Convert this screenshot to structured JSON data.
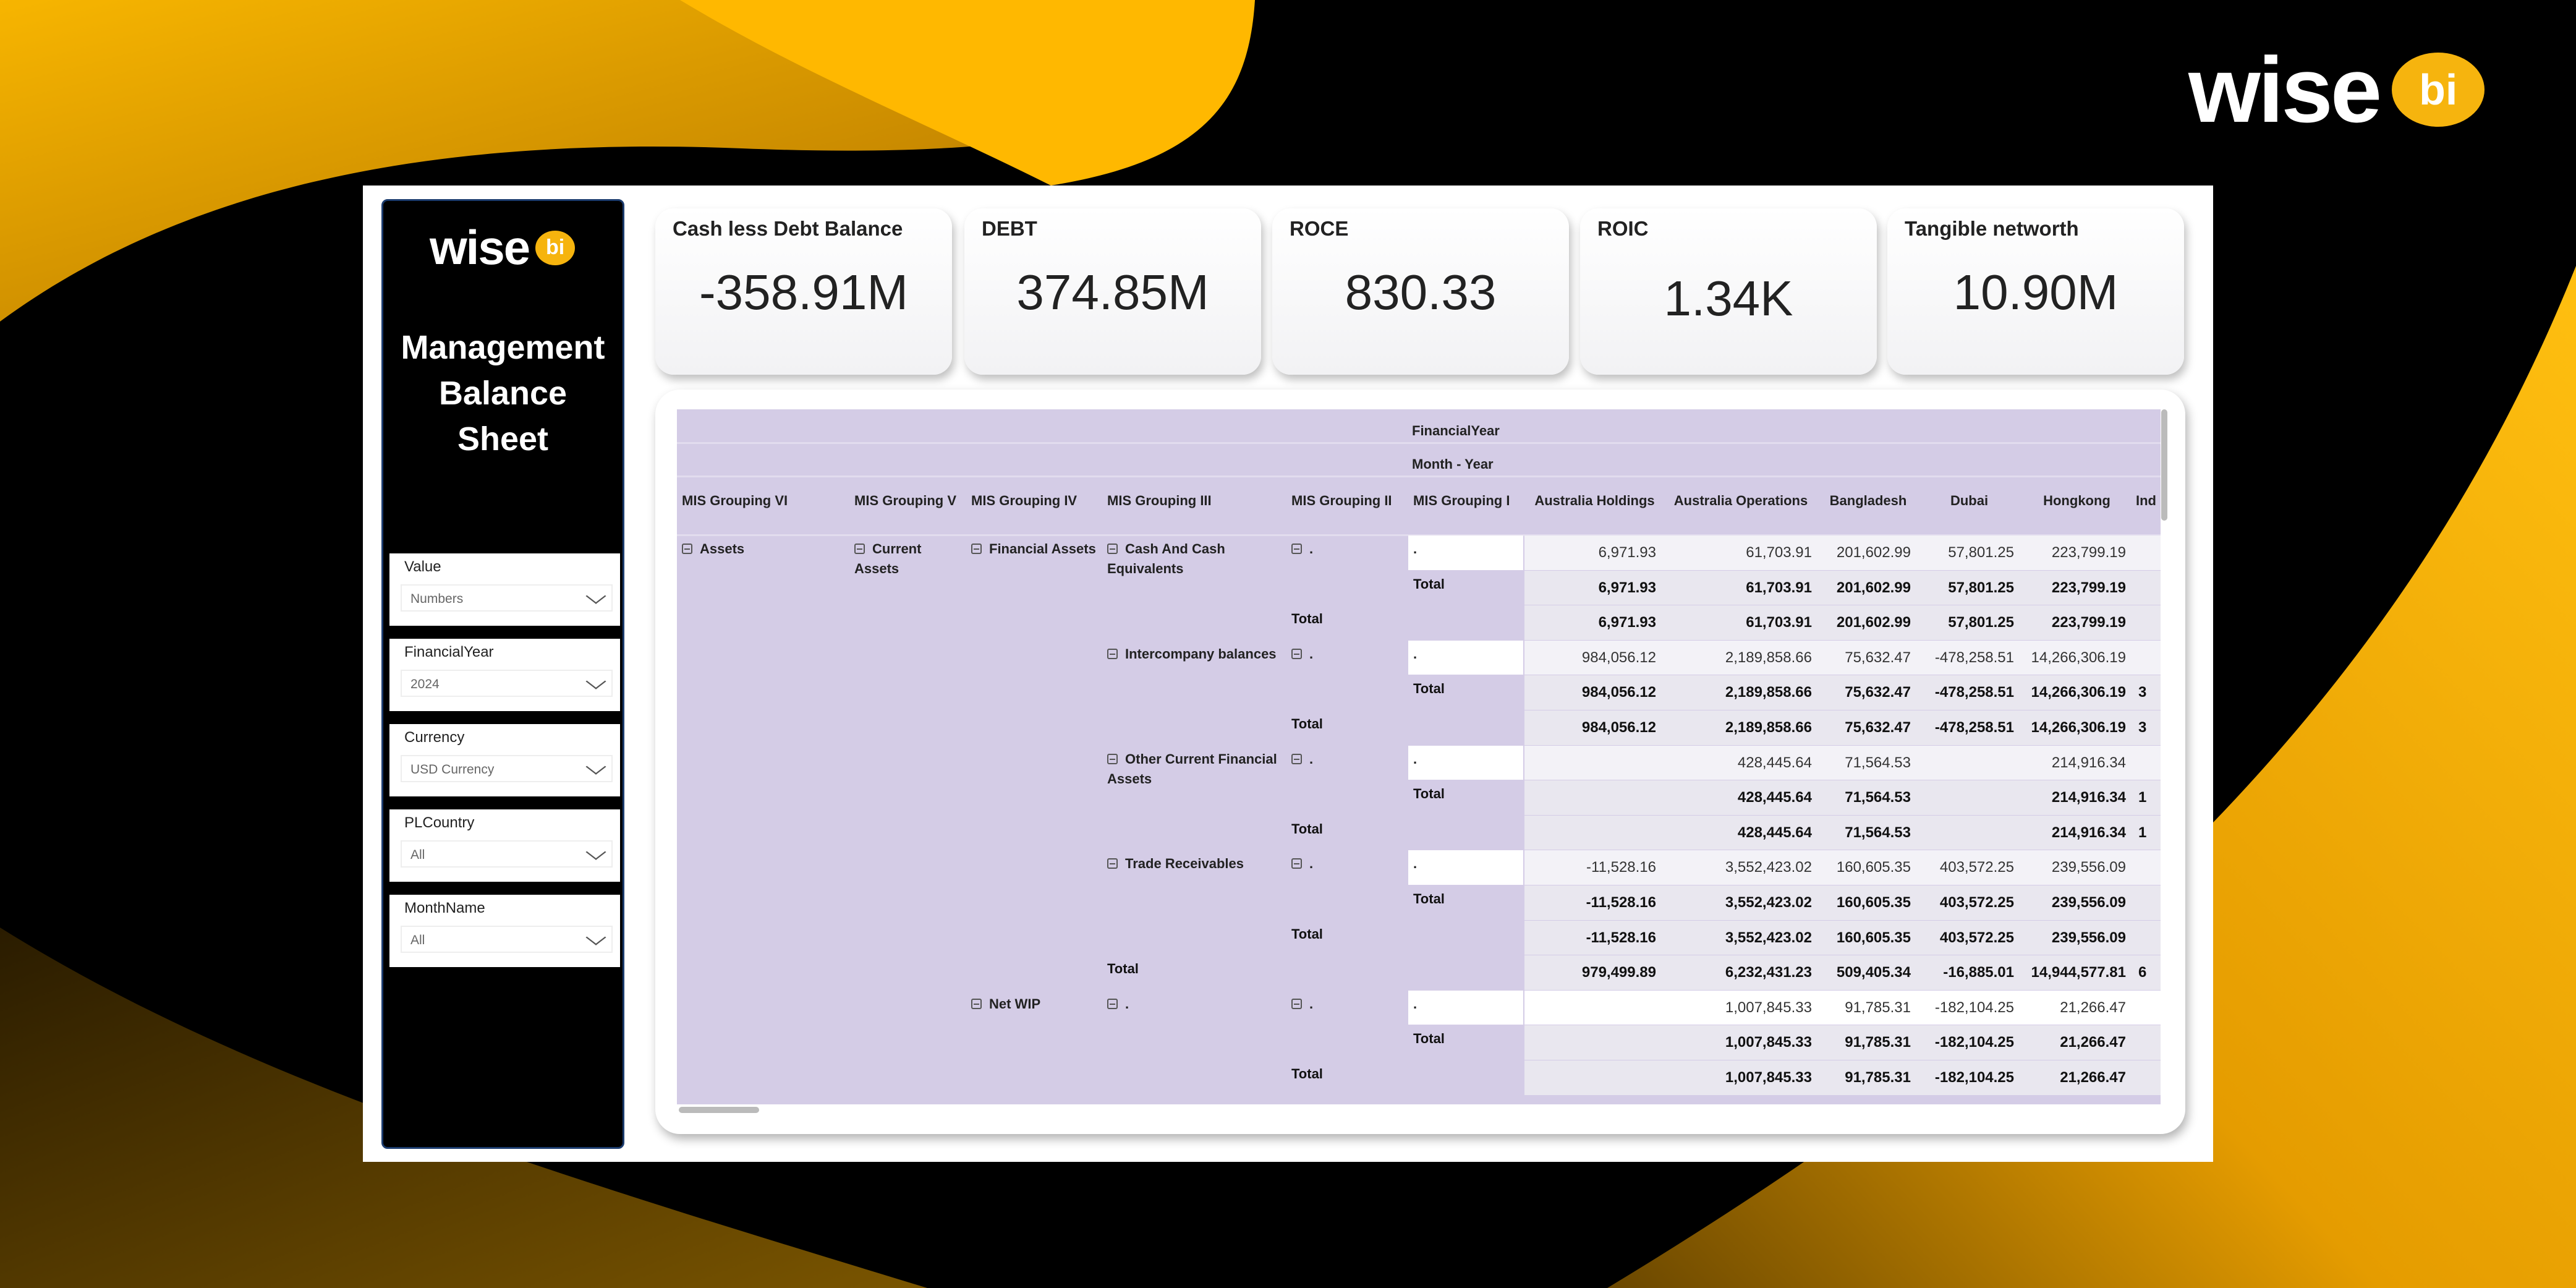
{
  "brand": {
    "word": "wise",
    "badge": "bi"
  },
  "sidebar": {
    "title_lines": [
      "Management",
      "Balance",
      "Sheet"
    ],
    "filters": [
      {
        "label": "Value",
        "value": "Numbers"
      },
      {
        "label": "FinancialYear",
        "value": "2024"
      },
      {
        "label": "Currency",
        "value": "USD Currency"
      },
      {
        "label": "PLCountry",
        "value": "All"
      },
      {
        "label": "MonthName",
        "value": "All"
      }
    ]
  },
  "kpis": [
    {
      "label": "Cash less Debt Balance",
      "value": "-358.91M"
    },
    {
      "label": "DEBT",
      "value": "374.85M"
    },
    {
      "label": "ROCE",
      "value": "830.33"
    },
    {
      "label": "ROIC",
      "value": "1.34K"
    },
    {
      "label": "Tangible networth",
      "value": "10.90M"
    }
  ],
  "colors": {
    "accent": "#f6b40e",
    "header_bg": "#d4cce6",
    "detail_bg": "#f3f2f7",
    "total_bg": "#e9e7ef"
  },
  "table": {
    "super_headers": [
      "FinancialYear",
      "Month - Year"
    ],
    "columns": [
      "MIS Grouping VI",
      "MIS Grouping V",
      "MIS Grouping IV",
      "MIS Grouping III",
      "MIS Grouping II",
      "MIS Grouping I",
      "Australia Holdings",
      "Australia Operations",
      "Bangladesh",
      "Dubai",
      "Hongkong",
      "Ind"
    ],
    "rows": [
      {
        "kind": "detail",
        "labels": [
          {
            "col": 0,
            "text": "Assets",
            "expand": true
          },
          {
            "col": 1,
            "text": "Current Assets",
            "expand": true
          },
          {
            "col": 2,
            "text": "Financial Assets",
            "expand": true
          },
          {
            "col": 3,
            "text": "Cash And Cash Equivalents",
            "expand": true
          },
          {
            "col": 4,
            "text": ".",
            "expand": true
          },
          {
            "col": 5,
            "text": "."
          }
        ],
        "values": [
          "6,971.93",
          "61,703.91",
          "201,602.99",
          "57,801.25",
          "223,799.19",
          ""
        ]
      },
      {
        "kind": "total",
        "labels": [
          {
            "col": 5,
            "text": "Total"
          }
        ],
        "values": [
          "6,971.93",
          "61,703.91",
          "201,602.99",
          "57,801.25",
          "223,799.19",
          ""
        ]
      },
      {
        "kind": "total",
        "labels": [
          {
            "col": 4,
            "text": "Total"
          }
        ],
        "values": [
          "6,971.93",
          "61,703.91",
          "201,602.99",
          "57,801.25",
          "223,799.19",
          ""
        ]
      },
      {
        "kind": "detail",
        "labels": [
          {
            "col": 3,
            "text": "Intercompany balances",
            "expand": true
          },
          {
            "col": 4,
            "text": ".",
            "expand": true
          },
          {
            "col": 5,
            "text": "."
          }
        ],
        "values": [
          "984,056.12",
          "2,189,858.66",
          "75,632.47",
          "-478,258.51",
          "14,266,306.19",
          ""
        ]
      },
      {
        "kind": "total",
        "labels": [
          {
            "col": 5,
            "text": "Total"
          }
        ],
        "values": [
          "984,056.12",
          "2,189,858.66",
          "75,632.47",
          "-478,258.51",
          "14,266,306.19",
          "3"
        ]
      },
      {
        "kind": "total",
        "labels": [
          {
            "col": 4,
            "text": "Total"
          }
        ],
        "values": [
          "984,056.12",
          "2,189,858.66",
          "75,632.47",
          "-478,258.51",
          "14,266,306.19",
          "3"
        ]
      },
      {
        "kind": "detail",
        "labels": [
          {
            "col": 3,
            "text": "Other Current Financial Assets",
            "expand": true
          },
          {
            "col": 4,
            "text": ".",
            "expand": true
          },
          {
            "col": 5,
            "text": "."
          }
        ],
        "values": [
          "",
          "428,445.64",
          "71,564.53",
          "",
          "214,916.34",
          ""
        ]
      },
      {
        "kind": "total",
        "labels": [
          {
            "col": 5,
            "text": "Total"
          }
        ],
        "values": [
          "",
          "428,445.64",
          "71,564.53",
          "",
          "214,916.34",
          "1"
        ]
      },
      {
        "kind": "total",
        "labels": [
          {
            "col": 4,
            "text": "Total"
          }
        ],
        "values": [
          "",
          "428,445.64",
          "71,564.53",
          "",
          "214,916.34",
          "1"
        ]
      },
      {
        "kind": "detail",
        "labels": [
          {
            "col": 3,
            "text": "Trade Receivables",
            "expand": true
          },
          {
            "col": 4,
            "text": ".",
            "expand": true
          },
          {
            "col": 5,
            "text": "."
          }
        ],
        "values": [
          "-11,528.16",
          "3,552,423.02",
          "160,605.35",
          "403,572.25",
          "239,556.09",
          ""
        ]
      },
      {
        "kind": "total",
        "labels": [
          {
            "col": 5,
            "text": "Total"
          }
        ],
        "values": [
          "-11,528.16",
          "3,552,423.02",
          "160,605.35",
          "403,572.25",
          "239,556.09",
          ""
        ]
      },
      {
        "kind": "total",
        "labels": [
          {
            "col": 4,
            "text": "Total"
          }
        ],
        "values": [
          "-11,528.16",
          "3,552,423.02",
          "160,605.35",
          "403,572.25",
          "239,556.09",
          ""
        ]
      },
      {
        "kind": "total",
        "labels": [
          {
            "col": 3,
            "text": "Total"
          }
        ],
        "values": [
          "979,499.89",
          "6,232,431.23",
          "509,405.34",
          "-16,885.01",
          "14,944,577.81",
          "6"
        ]
      },
      {
        "kind": "detail",
        "labels": [
          {
            "col": 2,
            "text": "Net WIP",
            "expand": true
          },
          {
            "col": 3,
            "text": ".",
            "expand": true
          },
          {
            "col": 4,
            "text": ".",
            "expand": true
          },
          {
            "col": 5,
            "text": "."
          }
        ],
        "values": [
          "",
          "1,007,845.33",
          "91,785.31",
          "-182,104.25",
          "21,266.47",
          ""
        ]
      },
      {
        "kind": "total",
        "labels": [
          {
            "col": 5,
            "text": "Total"
          }
        ],
        "values": [
          "",
          "1,007,845.33",
          "91,785.31",
          "-182,104.25",
          "21,266.47",
          ""
        ]
      },
      {
        "kind": "total",
        "labels": [
          {
            "col": 4,
            "text": "Total"
          }
        ],
        "values": [
          "",
          "1,007,845.33",
          "91,785.31",
          "-182,104.25",
          "21,266.47",
          ""
        ]
      }
    ]
  }
}
